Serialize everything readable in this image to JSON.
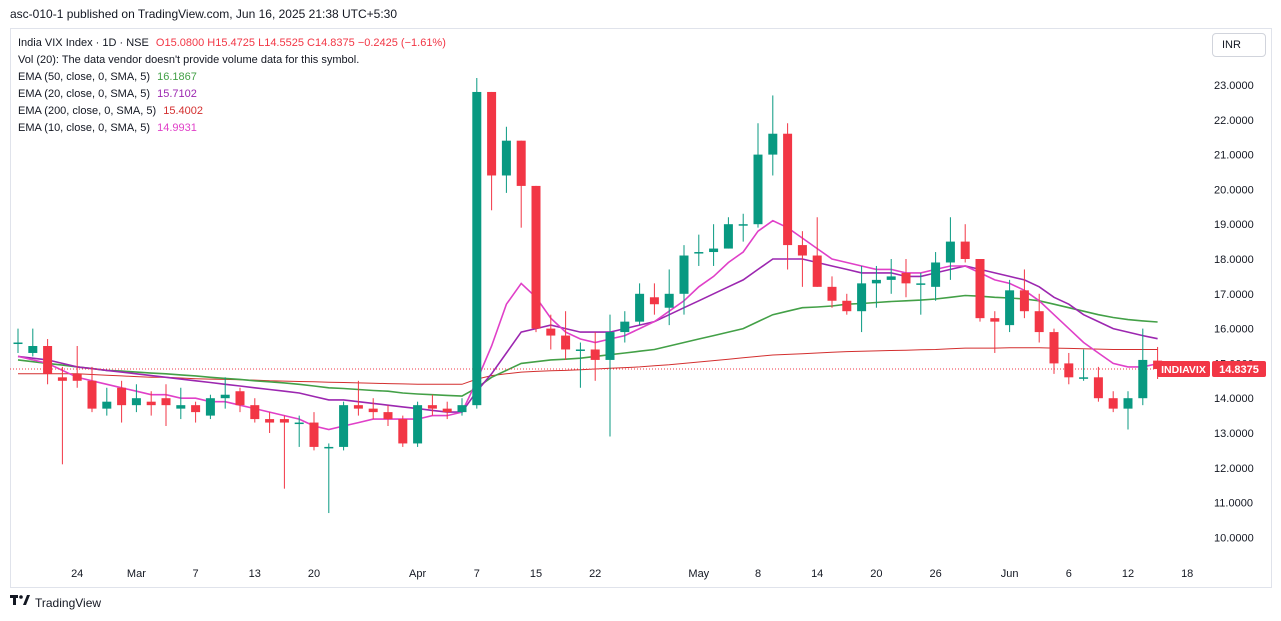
{
  "header": {
    "published": "asc-010-1 published on TradingView.com, Jun 16, 2025 21:38 UTC+5:30"
  },
  "legend": {
    "symbol": "India VIX Index · 1D · NSE",
    "open": "O15.0800",
    "high": "H15.4725",
    "low": "L14.5525",
    "close": "C14.8375",
    "change": "−0.2425 (−1.61%)",
    "volume_note": "Vol (20): The data vendor doesn't provide volume data for this symbol.",
    "ema50_label": "EMA (50, close, 0, SMA, 5)",
    "ema50_value": "16.1867",
    "ema20_label": "EMA (20, close, 0, SMA, 5)",
    "ema20_value": "15.7102",
    "ema200_label": "EMA (200, close, 0, SMA, 5)",
    "ema200_value": "15.4002",
    "ema10_label": "EMA (10, close, 0, SMA, 5)",
    "ema10_value": "14.9931"
  },
  "currency_button": "INR",
  "price_tag": {
    "symbol": "INDIAVIX",
    "value": "14.8375"
  },
  "brand": "TradingView",
  "colors": {
    "up": "#089981",
    "down": "#f23645",
    "ema10": "#e040c8",
    "ema20": "#9c27b0",
    "ema50": "#43a047",
    "ema200": "#d32f2f"
  },
  "chart_data": {
    "type": "candlestick",
    "title": "India VIX Index · 1D · NSE",
    "ylim": [
      9.5,
      23.5
    ],
    "y_ticks": [
      "23.0000",
      "22.0000",
      "21.0000",
      "20.0000",
      "19.0000",
      "18.0000",
      "17.0000",
      "16.0000",
      "15.0000",
      "14.0000",
      "13.0000",
      "12.0000",
      "11.0000",
      "10.0000"
    ],
    "x_ticks": [
      {
        "label": "24",
        "index": 4
      },
      {
        "label": "Mar",
        "index": 8
      },
      {
        "label": "7",
        "index": 12
      },
      {
        "label": "13",
        "index": 16
      },
      {
        "label": "20",
        "index": 20
      },
      {
        "label": "Apr",
        "index": 27
      },
      {
        "label": "7",
        "index": 31
      },
      {
        "label": "15",
        "index": 35
      },
      {
        "label": "22",
        "index": 39
      },
      {
        "label": "May",
        "index": 46
      },
      {
        "label": "8",
        "index": 50
      },
      {
        "label": "14",
        "index": 54
      },
      {
        "label": "20",
        "index": 58
      },
      {
        "label": "26",
        "index": 62
      },
      {
        "label": "Jun",
        "index": 67
      },
      {
        "label": "6",
        "index": 71
      },
      {
        "label": "12",
        "index": 75
      },
      {
        "label": "18",
        "index": 79
      }
    ],
    "candles": [
      [
        15.6,
        15.6,
        15.3,
        16.0
      ],
      [
        15.3,
        15.5,
        15.2,
        16.0
      ],
      [
        15.5,
        14.7,
        14.4,
        15.7
      ],
      [
        14.6,
        14.5,
        12.1,
        14.9
      ],
      [
        14.7,
        14.5,
        14.3,
        15.5
      ],
      [
        14.5,
        13.7,
        13.6,
        14.9
      ],
      [
        13.7,
        13.9,
        13.5,
        14.3
      ],
      [
        14.3,
        13.8,
        13.3,
        14.5
      ],
      [
        13.8,
        14.0,
        13.6,
        14.4
      ],
      [
        13.9,
        13.8,
        13.5,
        14.2
      ],
      [
        14.0,
        13.8,
        13.2,
        14.4
      ],
      [
        13.7,
        13.8,
        13.4,
        14.3
      ],
      [
        13.8,
        13.6,
        13.3,
        13.9
      ],
      [
        13.5,
        14.0,
        13.4,
        14.1
      ],
      [
        14.0,
        14.1,
        13.7,
        14.6
      ],
      [
        14.2,
        13.8,
        13.6,
        14.3
      ],
      [
        13.8,
        13.4,
        13.3,
        14.0
      ],
      [
        13.4,
        13.3,
        13.0,
        13.6
      ],
      [
        13.4,
        13.3,
        11.4,
        13.5
      ],
      [
        13.3,
        13.3,
        12.6,
        13.5
      ],
      [
        13.3,
        12.6,
        12.5,
        13.6
      ],
      [
        12.6,
        12.6,
        10.7,
        12.7
      ],
      [
        12.6,
        13.8,
        12.5,
        13.9
      ],
      [
        13.8,
        13.7,
        13.5,
        14.5
      ],
      [
        13.7,
        13.6,
        13.4,
        14.0
      ],
      [
        13.6,
        13.4,
        13.2,
        13.8
      ],
      [
        13.4,
        12.7,
        12.6,
        13.5
      ],
      [
        12.7,
        13.8,
        12.6,
        13.9
      ],
      [
        13.8,
        13.7,
        13.5,
        14.1
      ],
      [
        13.7,
        13.6,
        13.4,
        13.9
      ],
      [
        13.6,
        13.8,
        13.5,
        14.0
      ],
      [
        13.8,
        22.8,
        13.7,
        23.2
      ],
      [
        22.8,
        20.4,
        19.4,
        22.8
      ],
      [
        20.4,
        21.4,
        19.9,
        21.8
      ],
      [
        21.4,
        20.1,
        18.9,
        21.4
      ],
      [
        20.1,
        16.0,
        15.9,
        20.1
      ],
      [
        16.0,
        15.8,
        15.4,
        16.4
      ],
      [
        15.8,
        15.4,
        15.1,
        16.5
      ],
      [
        15.4,
        15.4,
        14.3,
        15.6
      ],
      [
        15.4,
        15.1,
        14.5,
        15.9
      ],
      [
        15.1,
        15.9,
        12.9,
        16.4
      ],
      [
        15.9,
        16.2,
        15.6,
        16.5
      ],
      [
        16.2,
        17.0,
        16.1,
        17.3
      ],
      [
        16.9,
        16.7,
        16.4,
        17.3
      ],
      [
        16.6,
        17.0,
        16.1,
        17.7
      ],
      [
        17.0,
        18.1,
        16.4,
        18.4
      ],
      [
        18.2,
        18.2,
        17.8,
        18.7
      ],
      [
        18.2,
        18.3,
        17.8,
        19.0
      ],
      [
        18.3,
        19.0,
        18.3,
        19.2
      ],
      [
        19.0,
        19.0,
        18.5,
        19.3
      ],
      [
        19.0,
        21.0,
        18.9,
        21.9
      ],
      [
        21.0,
        21.6,
        20.4,
        22.7
      ],
      [
        21.6,
        18.4,
        17.7,
        21.9
      ],
      [
        18.4,
        18.1,
        17.2,
        18.8
      ],
      [
        18.1,
        17.2,
        17.2,
        19.2
      ],
      [
        17.2,
        16.8,
        16.6,
        17.5
      ],
      [
        16.8,
        16.5,
        16.4,
        17.0
      ],
      [
        16.5,
        17.3,
        15.9,
        17.8
      ],
      [
        17.3,
        17.4,
        16.6,
        17.8
      ],
      [
        17.4,
        17.5,
        17.0,
        18.0
      ],
      [
        17.6,
        17.3,
        16.9,
        18.0
      ],
      [
        17.3,
        17.3,
        16.4,
        17.6
      ],
      [
        17.2,
        17.9,
        16.8,
        18.2
      ],
      [
        17.9,
        18.5,
        17.4,
        19.2
      ],
      [
        18.5,
        18.0,
        17.9,
        19.0
      ],
      [
        18.0,
        16.3,
        16.2,
        18.0
      ],
      [
        16.3,
        16.2,
        15.3,
        16.5
      ],
      [
        16.1,
        17.1,
        15.9,
        17.4
      ],
      [
        17.1,
        16.5,
        16.3,
        17.7
      ],
      [
        16.5,
        15.9,
        15.6,
        17.0
      ],
      [
        15.9,
        15.0,
        14.7,
        16.0
      ],
      [
        15.0,
        14.6,
        14.4,
        15.3
      ],
      [
        14.6,
        14.6,
        14.5,
        15.4
      ],
      [
        14.6,
        14.0,
        13.9,
        14.9
      ],
      [
        14.0,
        13.7,
        13.6,
        14.2
      ],
      [
        13.7,
        14.0,
        13.1,
        14.2
      ],
      [
        14.0,
        15.1,
        13.8,
        16.0
      ],
      [
        15.08,
        14.8375,
        14.5525,
        15.4725
      ]
    ],
    "series": [
      {
        "name": "EMA (10, close, 0, SMA, 5)",
        "indicator": "ema10",
        "values": [
          15.2,
          15.1,
          15.0,
          14.8,
          14.6,
          14.5,
          14.4,
          14.3,
          14.2,
          14.1,
          14.1,
          14.0,
          14.0,
          13.9,
          13.9,
          13.8,
          13.7,
          13.6,
          13.5,
          13.4,
          13.2,
          13.1,
          13.2,
          13.3,
          13.4,
          13.4,
          13.4,
          13.4,
          13.5,
          13.5,
          13.6,
          14.5,
          15.5,
          16.7,
          17.3,
          16.9,
          16.3,
          15.9,
          15.7,
          15.6,
          15.7,
          15.8,
          16.0,
          16.2,
          16.5,
          16.8,
          17.2,
          17.5,
          17.9,
          18.2,
          18.8,
          19.1,
          18.9,
          18.6,
          18.3,
          18.0,
          17.9,
          17.8,
          17.7,
          17.7,
          17.6,
          17.6,
          17.7,
          17.8,
          17.8,
          17.6,
          17.4,
          17.3,
          17.1,
          16.8,
          16.4,
          16.0,
          15.6,
          15.3,
          15.0,
          14.9,
          14.9,
          14.99
        ]
      },
      {
        "name": "EMA (20, close, 0, SMA, 5)",
        "indicator": "ema20",
        "values": [
          15.2,
          15.15,
          15.1,
          15.0,
          14.9,
          14.85,
          14.8,
          14.75,
          14.7,
          14.65,
          14.6,
          14.55,
          14.5,
          14.45,
          14.4,
          14.35,
          14.3,
          14.25,
          14.2,
          14.15,
          14.05,
          13.95,
          13.95,
          13.9,
          13.85,
          13.8,
          13.75,
          13.7,
          13.65,
          13.6,
          13.6,
          14.2,
          14.7,
          15.3,
          15.9,
          16.0,
          16.1,
          16.0,
          15.9,
          15.9,
          15.9,
          16.0,
          16.1,
          16.2,
          16.4,
          16.6,
          16.8,
          17.0,
          17.2,
          17.4,
          17.7,
          18.0,
          18.0,
          18.0,
          17.9,
          17.8,
          17.7,
          17.6,
          17.6,
          17.6,
          17.5,
          17.5,
          17.6,
          17.7,
          17.8,
          17.7,
          17.6,
          17.5,
          17.4,
          17.2,
          16.9,
          16.7,
          16.4,
          16.2,
          16.0,
          15.9,
          15.8,
          15.71
        ]
      },
      {
        "name": "EMA (50, close, 0, SMA, 5)",
        "indicator": "ema50",
        "values": [
          15.1,
          15.05,
          15.0,
          14.95,
          14.9,
          14.85,
          14.8,
          14.78,
          14.75,
          14.72,
          14.7,
          14.67,
          14.64,
          14.6,
          14.57,
          14.54,
          14.5,
          14.47,
          14.44,
          14.4,
          14.35,
          14.3,
          14.28,
          14.25,
          14.22,
          14.2,
          14.15,
          14.12,
          14.1,
          14.08,
          14.06,
          14.3,
          14.6,
          14.8,
          15.0,
          15.05,
          15.1,
          15.12,
          15.15,
          15.2,
          15.25,
          15.3,
          15.35,
          15.4,
          15.5,
          15.6,
          15.7,
          15.8,
          15.9,
          16.0,
          16.2,
          16.4,
          16.5,
          16.6,
          16.62,
          16.65,
          16.7,
          16.72,
          16.75,
          16.78,
          16.8,
          16.82,
          16.85,
          16.9,
          16.95,
          16.93,
          16.9,
          16.88,
          16.85,
          16.8,
          16.7,
          16.6,
          16.5,
          16.4,
          16.32,
          16.26,
          16.22,
          16.19
        ]
      },
      {
        "name": "EMA (200, close, 0, SMA, 5)",
        "indicator": "ema200",
        "values": [
          14.7,
          14.7,
          14.7,
          14.7,
          14.7,
          14.68,
          14.66,
          14.64,
          14.62,
          14.6,
          14.6,
          14.58,
          14.56,
          14.55,
          14.54,
          14.53,
          14.52,
          14.5,
          14.49,
          14.48,
          14.47,
          14.46,
          14.45,
          14.44,
          14.43,
          14.42,
          14.41,
          14.4,
          14.4,
          14.4,
          14.4,
          14.55,
          14.65,
          14.7,
          14.75,
          14.77,
          14.79,
          14.8,
          14.82,
          14.84,
          14.86,
          14.88,
          14.9,
          14.93,
          14.96,
          15.0,
          15.04,
          15.08,
          15.12,
          15.16,
          15.2,
          15.24,
          15.26,
          15.28,
          15.3,
          15.32,
          15.34,
          15.35,
          15.36,
          15.37,
          15.38,
          15.39,
          15.4,
          15.42,
          15.44,
          15.44,
          15.44,
          15.45,
          15.45,
          15.45,
          15.44,
          15.43,
          15.42,
          15.41,
          15.4,
          15.4,
          15.4,
          15.4
        ]
      }
    ]
  }
}
